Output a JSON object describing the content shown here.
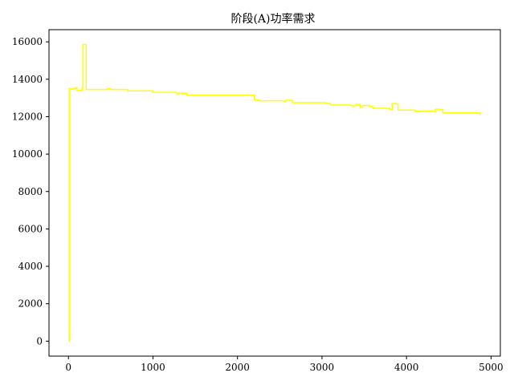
{
  "chart_data": {
    "type": "line",
    "title": "阶段(A)功率需求",
    "xlabel": "",
    "ylabel": "",
    "xlim": [
      -230,
      5110
    ],
    "ylim": [
      -800,
      16650
    ],
    "xticks": [
      0,
      1000,
      2000,
      3000,
      4000,
      5000
    ],
    "yticks": [
      0,
      2000,
      4000,
      6000,
      8000,
      10000,
      12000,
      14000,
      16000
    ],
    "grid": false,
    "legend": "none",
    "series": [
      {
        "color": "#ffff00",
        "step": true,
        "x": [
          0,
          10,
          80,
          100,
          160,
          170,
          200,
          210,
          440,
          460,
          500,
          700,
          1000,
          1280,
          1300,
          1340,
          1400,
          2200,
          2250,
          2550,
          2570,
          2620,
          2650,
          3050,
          3100,
          3350,
          3400,
          3450,
          3480,
          3560,
          3600,
          3800,
          3830,
          3880,
          3900,
          4100,
          4320,
          4340,
          4400,
          4430,
          4870
        ],
        "y": [
          0,
          13500,
          13550,
          13400,
          13500,
          15850,
          15850,
          13450,
          13450,
          13500,
          13450,
          13380,
          13300,
          13200,
          13270,
          13250,
          13150,
          12900,
          12850,
          12800,
          12880,
          12870,
          12750,
          12700,
          12620,
          12580,
          12650,
          12500,
          12600,
          12550,
          12450,
          12400,
          12700,
          12680,
          12350,
          12300,
          12250,
          12400,
          12380,
          12200,
          12080
        ]
      }
    ]
  }
}
